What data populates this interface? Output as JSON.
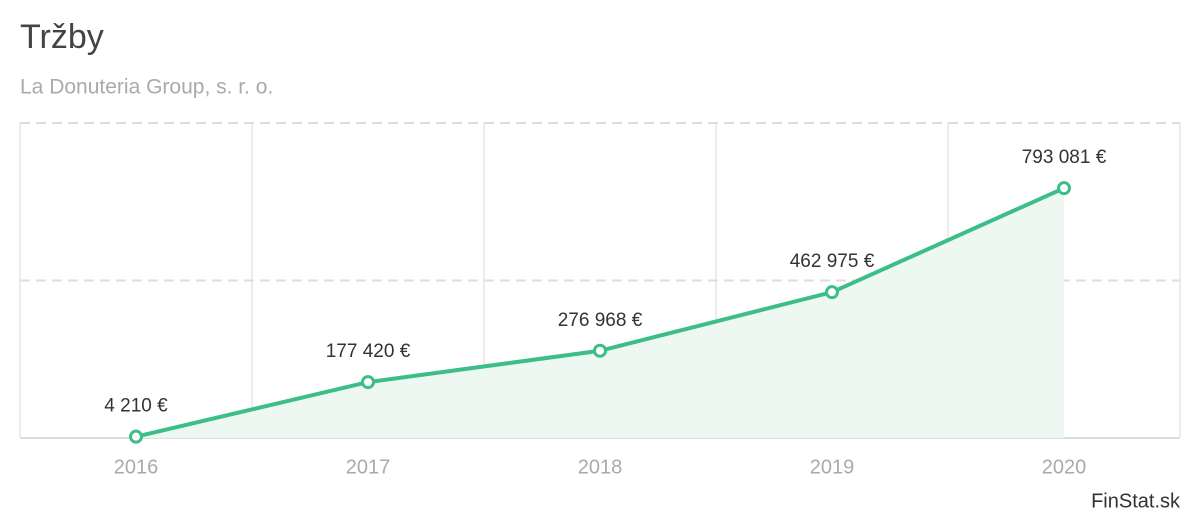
{
  "chart_data": {
    "type": "line",
    "title": "Tržby",
    "subtitle": "La Donuteria Group, s. r. o.",
    "source": "FinStat.sk",
    "categories": [
      "2016",
      "2017",
      "2018",
      "2019",
      "2020"
    ],
    "series": [
      {
        "name": "Tržby",
        "color": "#3dbd87",
        "values": [
          4210,
          177420,
          276968,
          462975,
          793081
        ],
        "value_labels": [
          "4 210 €",
          "177 420 €",
          "276 968 €",
          "462 975 €",
          "793 081 €"
        ]
      }
    ],
    "ylim": [
      0,
      1000000
    ],
    "yticks": [
      0,
      500000,
      1000000
    ],
    "show_ytick_labels": false,
    "grid": true,
    "area_fill": "#eef8f3"
  }
}
